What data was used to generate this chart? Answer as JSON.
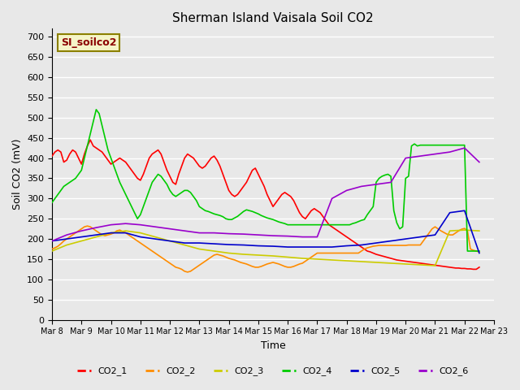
{
  "title": "Sherman Island Vaisala Soil CO2",
  "xlabel": "Time",
  "ylabel": "Soil CO2 (mV)",
  "ylim": [
    0,
    720
  ],
  "yticks": [
    0,
    50,
    100,
    150,
    200,
    250,
    300,
    350,
    400,
    450,
    500,
    550,
    600,
    650,
    700
  ],
  "watermark_text": "SI_soilco2",
  "background_color": "#e8e8e8",
  "plot_bg_color": "#e8e8e8",
  "grid_color": "#ffffff",
  "legend_labels": [
    "CO2_1",
    "CO2_2",
    "CO2_3",
    "CO2_4",
    "CO2_5",
    "CO2_6"
  ],
  "line_colors": [
    "#ff0000",
    "#ff8c00",
    "#cccc00",
    "#00cc00",
    "#0000cc",
    "#9900cc"
  ],
  "series": {
    "CO2_1": {
      "x": [
        0,
        0.1,
        0.2,
        0.3,
        0.4,
        0.5,
        0.6,
        0.7,
        0.8,
        0.9,
        1.0,
        1.1,
        1.2,
        1.3,
        1.4,
        1.5,
        1.6,
        1.7,
        1.8,
        1.9,
        2.0,
        2.1,
        2.2,
        2.3,
        2.4,
        2.5,
        2.6,
        2.7,
        2.8,
        2.9,
        3.0,
        3.1,
        3.2,
        3.3,
        3.4,
        3.5,
        3.6,
        3.7,
        3.8,
        3.9,
        4.0,
        4.1,
        4.2,
        4.3,
        4.4,
        4.5,
        4.6,
        4.7,
        4.8,
        4.9,
        5.0,
        5.1,
        5.2,
        5.3,
        5.4,
        5.5,
        5.6,
        5.7,
        5.8,
        5.9,
        6.0,
        6.1,
        6.2,
        6.3,
        6.4,
        6.5,
        6.6,
        6.7,
        6.8,
        6.9,
        7.0,
        7.1,
        7.2,
        7.3,
        7.4,
        7.5,
        7.6,
        7.7,
        7.8,
        7.9,
        8.0,
        8.1,
        8.2,
        8.3,
        8.4,
        8.5,
        8.6,
        8.7,
        8.8,
        8.9,
        9.0,
        9.1,
        9.2,
        9.3,
        9.4,
        9.5,
        9.6,
        9.7,
        9.8,
        9.9,
        10.0,
        10.1,
        10.2,
        10.3,
        10.4,
        10.5,
        10.6,
        10.7,
        10.8,
        10.9,
        11.0,
        11.1,
        11.2,
        11.3,
        11.4,
        11.5,
        11.6,
        11.7,
        11.8,
        11.9,
        12.0,
        12.1,
        12.2,
        12.3,
        12.4,
        12.5,
        12.6,
        12.7,
        12.8,
        12.9,
        13.0,
        13.1,
        13.2,
        13.3,
        13.4,
        13.5,
        13.6,
        13.7,
        13.8,
        13.9,
        14.0,
        14.1,
        14.2,
        14.3,
        14.4,
        14.5
      ],
      "y": [
        405,
        415,
        420,
        415,
        390,
        395,
        410,
        420,
        415,
        400,
        385,
        410,
        430,
        445,
        430,
        425,
        420,
        415,
        405,
        395,
        385,
        390,
        395,
        400,
        395,
        390,
        380,
        370,
        360,
        350,
        345,
        360,
        380,
        400,
        410,
        415,
        420,
        410,
        390,
        370,
        355,
        340,
        335,
        360,
        380,
        400,
        410,
        405,
        400,
        390,
        380,
        375,
        380,
        390,
        400,
        405,
        395,
        380,
        360,
        340,
        320,
        310,
        305,
        310,
        320,
        330,
        340,
        355,
        370,
        375,
        360,
        345,
        330,
        310,
        295,
        280,
        290,
        300,
        310,
        315,
        310,
        305,
        295,
        280,
        265,
        255,
        250,
        260,
        270,
        275,
        270,
        265,
        255,
        245,
        235,
        230,
        225,
        220,
        215,
        210,
        205,
        200,
        195,
        190,
        185,
        180,
        175,
        170,
        168,
        165,
        162,
        160,
        158,
        156,
        154,
        152,
        150,
        148,
        147,
        146,
        145,
        144,
        143,
        142,
        141,
        140,
        139,
        138,
        137,
        136,
        135,
        134,
        133,
        132,
        131,
        130,
        129,
        128,
        128,
        127,
        127,
        126,
        126,
        125,
        125,
        130
      ]
    },
    "CO2_2": {
      "x": [
        0,
        0.1,
        0.2,
        0.3,
        0.4,
        0.5,
        0.6,
        0.7,
        0.8,
        0.9,
        1.0,
        1.1,
        1.2,
        1.3,
        1.4,
        1.5,
        1.6,
        1.7,
        1.8,
        1.9,
        2.0,
        2.1,
        2.2,
        2.3,
        2.4,
        2.5,
        2.6,
        2.7,
        2.8,
        2.9,
        3.0,
        3.1,
        3.2,
        3.3,
        3.4,
        3.5,
        3.6,
        3.7,
        3.8,
        3.9,
        4.0,
        4.1,
        4.2,
        4.3,
        4.4,
        4.5,
        4.6,
        4.7,
        4.8,
        4.9,
        5.0,
        5.1,
        5.2,
        5.3,
        5.4,
        5.5,
        5.6,
        5.7,
        5.8,
        5.9,
        6.0,
        6.1,
        6.2,
        6.3,
        6.4,
        6.5,
        6.6,
        6.7,
        6.8,
        6.9,
        7.0,
        7.1,
        7.2,
        7.3,
        7.4,
        7.5,
        7.6,
        7.7,
        7.8,
        7.9,
        8.0,
        8.1,
        8.2,
        8.3,
        8.4,
        8.5,
        8.6,
        8.7,
        8.8,
        8.9,
        9.0,
        9.1,
        9.2,
        9.3,
        9.4,
        9.5,
        9.6,
        9.7,
        9.8,
        9.9,
        10.0,
        10.1,
        10.2,
        10.3,
        10.4,
        10.5,
        10.6,
        10.7,
        10.8,
        10.9,
        11.0,
        11.1,
        11.2,
        11.3,
        11.4,
        11.5,
        11.6,
        11.7,
        11.8,
        11.9,
        12.0,
        12.1,
        12.2,
        12.3,
        12.4,
        12.5,
        12.6,
        12.7,
        12.8,
        12.9,
        13.0,
        13.1,
        13.2,
        13.3,
        13.4,
        13.5,
        13.6,
        13.7,
        13.8,
        13.9,
        14.0,
        14.1,
        14.2,
        14.3,
        14.4,
        14.5
      ],
      "y": [
        175,
        178,
        182,
        188,
        195,
        200,
        205,
        210,
        215,
        220,
        225,
        230,
        232,
        230,
        225,
        220,
        215,
        210,
        208,
        210,
        212,
        215,
        220,
        222,
        218,
        215,
        210,
        205,
        200,
        195,
        190,
        185,
        180,
        175,
        170,
        165,
        160,
        155,
        150,
        145,
        140,
        135,
        130,
        128,
        125,
        120,
        118,
        120,
        125,
        130,
        135,
        140,
        145,
        150,
        155,
        160,
        162,
        160,
        158,
        155,
        152,
        150,
        148,
        145,
        142,
        140,
        138,
        135,
        132,
        130,
        130,
        132,
        135,
        138,
        140,
        142,
        140,
        138,
        135,
        132,
        130,
        130,
        132,
        135,
        138,
        140,
        145,
        150,
        155,
        160,
        165,
        165,
        165,
        165,
        165,
        165,
        165,
        165,
        165,
        165,
        165,
        165,
        165,
        165,
        165,
        170,
        175,
        178,
        180,
        182,
        183,
        184,
        184,
        184,
        184,
        184,
        184,
        184,
        184,
        184,
        184,
        185,
        185,
        185,
        185,
        185,
        195,
        205,
        215,
        225,
        230,
        225,
        220,
        216,
        212,
        210,
        210,
        215,
        220,
        224,
        226,
        220,
        175,
        172,
        170,
        168
      ]
    },
    "CO2_3": {
      "x": [
        0,
        0.5,
        1.0,
        1.5,
        2.0,
        2.5,
        3.0,
        3.5,
        4.0,
        4.5,
        5.0,
        5.5,
        6.0,
        6.5,
        7.0,
        7.5,
        8.0,
        8.5,
        9.0,
        9.5,
        10.0,
        10.5,
        11.0,
        11.5,
        12.0,
        12.5,
        13.0,
        13.5,
        14.0,
        14.5
      ],
      "y": [
        170,
        185,
        195,
        205,
        215,
        220,
        215,
        205,
        195,
        185,
        175,
        170,
        165,
        162,
        160,
        158,
        155,
        152,
        150,
        148,
        146,
        144,
        142,
        140,
        138,
        136,
        134,
        220,
        222,
        220
      ]
    },
    "CO2_4": {
      "x": [
        0,
        0.1,
        0.2,
        0.3,
        0.4,
        0.5,
        0.6,
        0.7,
        0.8,
        0.9,
        1.0,
        1.1,
        1.2,
        1.3,
        1.4,
        1.5,
        1.6,
        1.7,
        1.8,
        1.9,
        2.0,
        2.1,
        2.2,
        2.3,
        2.4,
        2.5,
        2.6,
        2.7,
        2.8,
        2.9,
        3.0,
        3.1,
        3.2,
        3.3,
        3.4,
        3.5,
        3.6,
        3.7,
        3.8,
        3.9,
        4.0,
        4.1,
        4.2,
        4.3,
        4.4,
        4.5,
        4.6,
        4.7,
        4.8,
        4.9,
        5.0,
        5.1,
        5.2,
        5.3,
        5.4,
        5.5,
        5.6,
        5.7,
        5.8,
        5.9,
        6.0,
        6.1,
        6.2,
        6.3,
        6.4,
        6.5,
        6.6,
        6.7,
        6.8,
        6.9,
        7.0,
        7.1,
        7.2,
        7.3,
        7.4,
        7.5,
        7.6,
        7.7,
        7.8,
        7.9,
        8.0,
        8.1,
        8.2,
        8.3,
        8.4,
        8.5,
        8.6,
        8.7,
        8.8,
        8.9,
        9.0,
        9.1,
        9.2,
        9.3,
        9.4,
        9.5,
        9.6,
        9.7,
        9.8,
        9.9,
        10.0,
        10.1,
        10.2,
        10.3,
        10.4,
        10.5,
        10.6,
        10.7,
        10.8,
        10.9,
        11.0,
        11.1,
        11.2,
        11.3,
        11.4,
        11.5,
        11.6,
        11.7,
        11.8,
        11.9,
        12.0,
        12.1,
        12.2,
        12.3,
        12.4,
        12.5,
        12.6,
        12.7,
        12.8,
        12.9,
        13.0,
        13.1,
        13.2,
        13.3,
        13.4,
        13.5,
        13.6,
        13.7,
        13.8,
        13.9,
        14.0,
        14.1,
        14.2,
        14.3,
        14.4,
        14.5
      ],
      "y": [
        290,
        300,
        310,
        320,
        330,
        335,
        340,
        345,
        350,
        360,
        370,
        400,
        430,
        460,
        490,
        520,
        510,
        480,
        450,
        420,
        400,
        380,
        360,
        340,
        325,
        310,
        295,
        280,
        265,
        250,
        260,
        280,
        300,
        320,
        340,
        350,
        360,
        355,
        345,
        335,
        320,
        310,
        305,
        310,
        315,
        320,
        320,
        315,
        305,
        295,
        280,
        275,
        270,
        268,
        265,
        262,
        260,
        258,
        255,
        250,
        248,
        248,
        252,
        256,
        262,
        268,
        272,
        270,
        268,
        265,
        262,
        258,
        255,
        252,
        250,
        248,
        245,
        242,
        240,
        238,
        235,
        235,
        235,
        235,
        235,
        235,
        235,
        235,
        235,
        235,
        235,
        235,
        235,
        235,
        235,
        235,
        235,
        235,
        235,
        235,
        235,
        235,
        238,
        240,
        243,
        246,
        248,
        260,
        270,
        280,
        340,
        350,
        355,
        358,
        360,
        355,
        270,
        240,
        225,
        230,
        350,
        355,
        430,
        435,
        430,
        432,
        432,
        432,
        432,
        432,
        432,
        432,
        432,
        432,
        432,
        432,
        432,
        432,
        432,
        432,
        432,
        170,
        170,
        170,
        170,
        170
      ]
    },
    "CO2_5": {
      "x": [
        0,
        0.5,
        1.0,
        1.5,
        2.0,
        2.5,
        3.0,
        3.5,
        4.0,
        4.5,
        5.0,
        5.5,
        6.0,
        6.5,
        7.0,
        7.5,
        8.0,
        8.5,
        9.0,
        9.5,
        10.0,
        10.5,
        11.0,
        11.5,
        12.0,
        12.5,
        13.0,
        13.5,
        14.0,
        14.5
      ],
      "y": [
        195,
        200,
        205,
        210,
        215,
        215,
        205,
        200,
        195,
        190,
        190,
        188,
        186,
        185,
        183,
        182,
        180,
        180,
        180,
        180,
        183,
        185,
        190,
        195,
        200,
        205,
        210,
        265,
        270,
        165
      ]
    },
    "CO2_6": {
      "x": [
        0,
        0.5,
        1.0,
        1.5,
        2.0,
        2.5,
        3.0,
        3.5,
        4.0,
        4.5,
        5.0,
        5.5,
        6.0,
        6.5,
        7.0,
        7.5,
        8.0,
        8.5,
        9.0,
        9.5,
        10.0,
        10.5,
        11.0,
        11.5,
        12.0,
        12.5,
        13.0,
        13.5,
        14.0,
        14.5
      ],
      "y": [
        195,
        210,
        220,
        228,
        235,
        238,
        235,
        230,
        225,
        220,
        215,
        215,
        213,
        212,
        210,
        208,
        207,
        205,
        205,
        300,
        320,
        330,
        335,
        340,
        400,
        405,
        410,
        415,
        425,
        390
      ]
    }
  },
  "xtick_positions": [
    0,
    1,
    2,
    3,
    4,
    5,
    6,
    7,
    8,
    9,
    10,
    11,
    12,
    13,
    14,
    15
  ],
  "xtick_labels": [
    "Mar 8",
    "Mar 9",
    "Mar 10",
    "Mar 11",
    "Mar 12",
    "Mar 13",
    "Mar 14",
    "Mar 15",
    "Mar 16",
    "Mar 17",
    "Mar 18",
    "Mar 19",
    "Mar 20",
    "Mar 21",
    "Mar 22",
    "Mar 23"
  ],
  "xlim": [
    0,
    15
  ]
}
